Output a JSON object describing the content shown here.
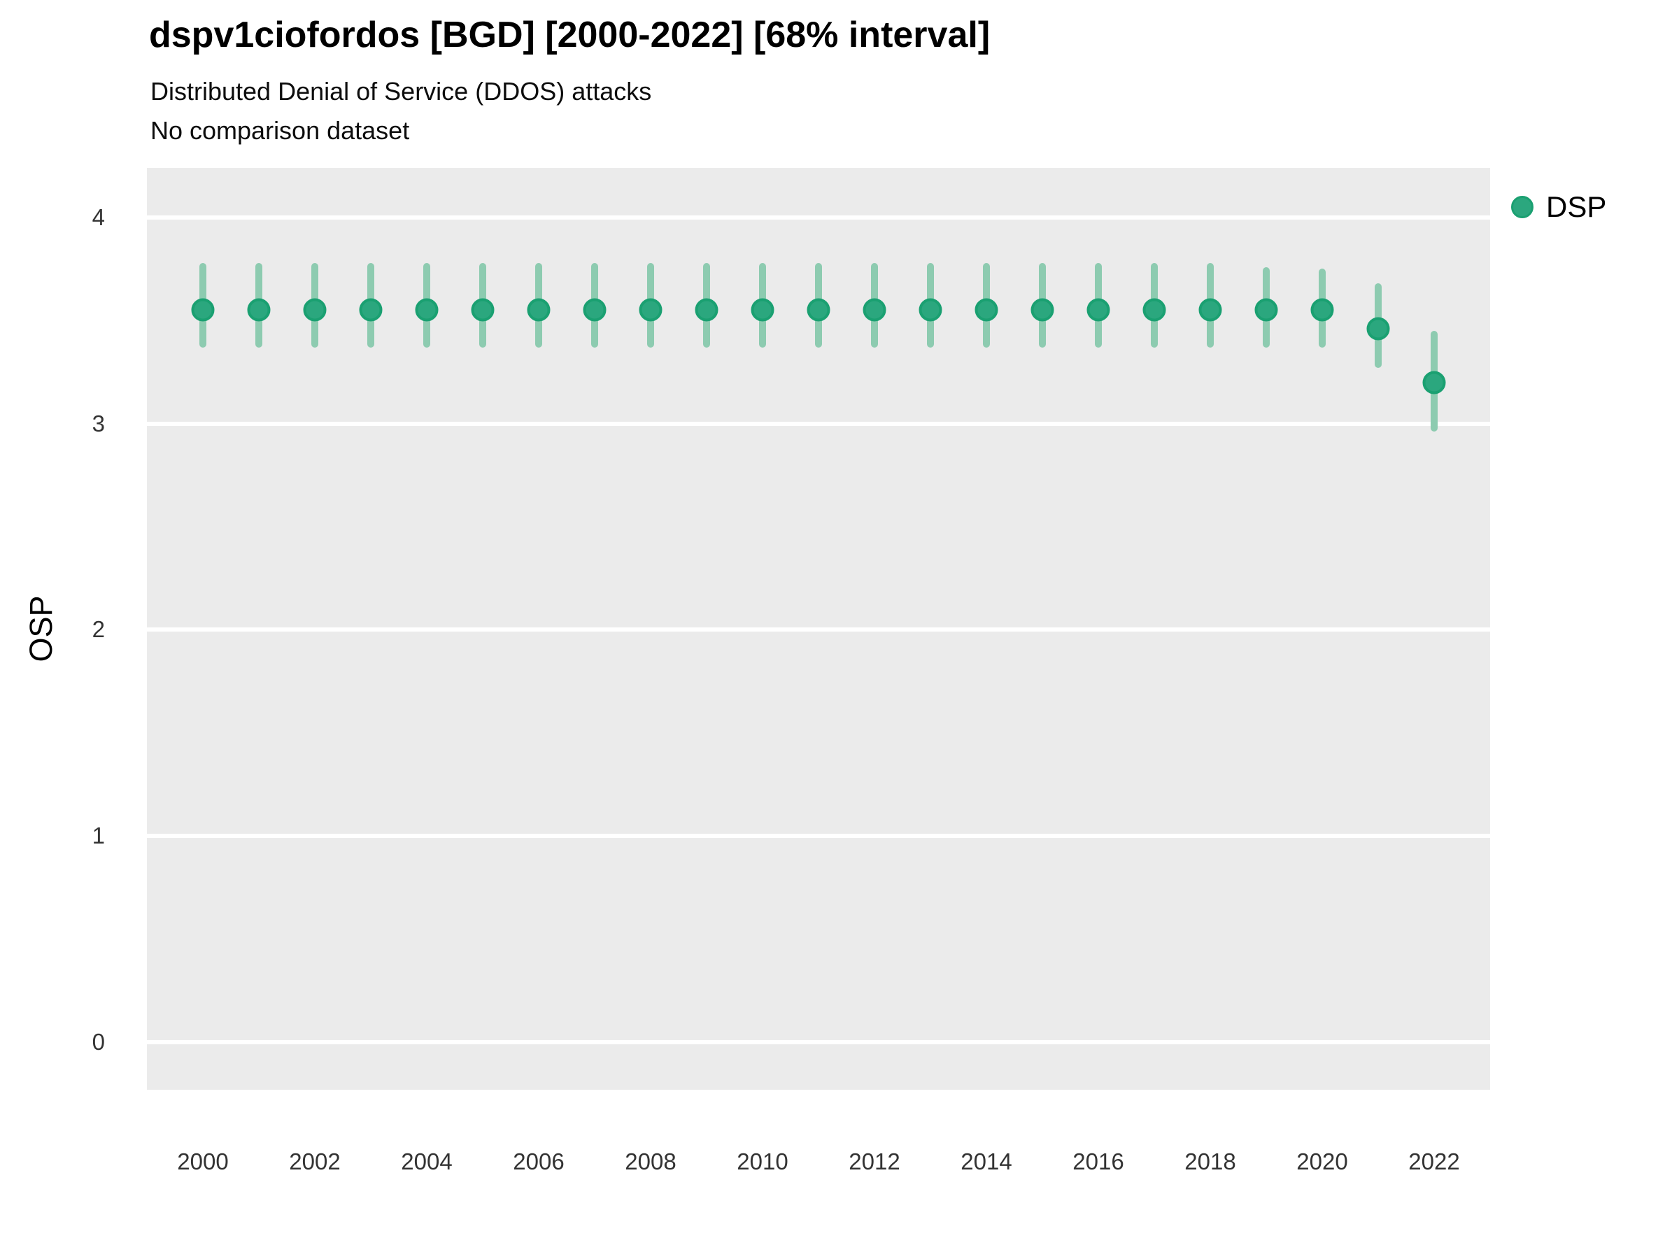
{
  "header": {
    "title": "dspv1ciofordos [BGD] [2000-2022] [68% interval]",
    "subtitle": "Distributed Denial of Service (DDOS) attacks",
    "comparison_note": "No comparison dataset"
  },
  "axes": {
    "y_title": "OSP",
    "x_title": ""
  },
  "legend": {
    "position": "right",
    "items": [
      {
        "label": "DSP",
        "marker": "circle"
      }
    ]
  },
  "colors": {
    "panel_bg": "#ebebeb",
    "gridline": "#ffffff",
    "point_fill": "#2ba77e",
    "point_stroke": "#1aa071",
    "error_bar": "#8dcbb0",
    "title_text": "#000000",
    "tick_text": "#333333"
  },
  "chart_data": {
    "type": "scatter",
    "title": "dspv1ciofordos [BGD] [2000-2022] [68% interval]",
    "subtitle": "Distributed Denial of Service (DDOS) attacks",
    "comparison": "No comparison dataset",
    "interval": "68%",
    "xlabel": "",
    "ylabel": "OSP",
    "grid": true,
    "legend_position": "right",
    "xlim": [
      1999,
      2023
    ],
    "ylim": [
      -0.23,
      4.24
    ],
    "yticks": [
      0,
      1,
      2,
      3,
      4
    ],
    "xticks": [
      2000,
      2002,
      2004,
      2006,
      2008,
      2010,
      2012,
      2014,
      2016,
      2018,
      2020,
      2022
    ],
    "series": [
      {
        "name": "DSP",
        "x": [
          2000,
          2001,
          2002,
          2003,
          2004,
          2005,
          2006,
          2007,
          2008,
          2009,
          2010,
          2011,
          2012,
          2013,
          2014,
          2015,
          2016,
          2017,
          2018,
          2019,
          2020,
          2021,
          2022
        ],
        "y": [
          3.55,
          3.55,
          3.55,
          3.55,
          3.55,
          3.55,
          3.55,
          3.55,
          3.55,
          3.55,
          3.55,
          3.55,
          3.55,
          3.55,
          3.55,
          3.55,
          3.55,
          3.55,
          3.55,
          3.55,
          3.55,
          3.46,
          3.2
        ],
        "y_lo": [
          3.37,
          3.37,
          3.37,
          3.37,
          3.37,
          3.37,
          3.37,
          3.37,
          3.37,
          3.37,
          3.37,
          3.37,
          3.37,
          3.37,
          3.37,
          3.37,
          3.37,
          3.37,
          3.37,
          3.37,
          3.37,
          3.27,
          2.96
        ],
        "y_hi": [
          3.78,
          3.78,
          3.78,
          3.78,
          3.78,
          3.78,
          3.78,
          3.78,
          3.78,
          3.78,
          3.78,
          3.78,
          3.78,
          3.78,
          3.78,
          3.78,
          3.78,
          3.78,
          3.78,
          3.76,
          3.75,
          3.68,
          3.45
        ]
      }
    ]
  }
}
